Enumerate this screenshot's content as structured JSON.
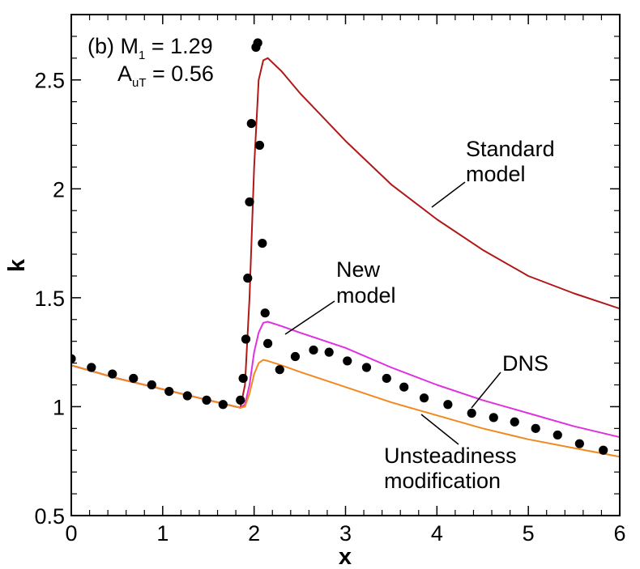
{
  "chart_data": {
    "type": "line",
    "title": "",
    "xlabel": "x",
    "ylabel": "k",
    "xlim": [
      0,
      6
    ],
    "ylim": [
      0.5,
      2.8
    ],
    "grid": false,
    "legend": "none (inline labels)",
    "x_ticks": [
      0,
      1,
      2,
      3,
      4,
      5,
      6
    ],
    "x_tick_labels": [
      "0",
      "1",
      "2",
      "3",
      "4",
      "5",
      "6"
    ],
    "y_ticks": [
      0.5,
      1,
      1.5,
      2,
      2.5
    ],
    "y_tick_labels": [
      "0.5",
      "1",
      "1.5",
      "2",
      "2.5"
    ],
    "annotation": {
      "line1_prefix": "(b) M",
      "line1_sub": "1",
      "line1_suffix": " = 1.29",
      "line2_prefix": "A",
      "line2_sub": "uT",
      "line2_suffix": " = 0.56"
    },
    "series": [
      {
        "name": "Standard model",
        "label_lines": [
          "Standard",
          "model"
        ],
        "color": "#b01818",
        "x": [
          0,
          0.5,
          1,
          1.5,
          1.75,
          1.85,
          1.9,
          1.95,
          2.0,
          2.05,
          2.1,
          2.15,
          2.3,
          2.5,
          3.0,
          3.5,
          4.0,
          4.5,
          5.0,
          5.5,
          6.0
        ],
        "y": [
          1.19,
          1.13,
          1.08,
          1.03,
          1.005,
          0.995,
          1.1,
          1.5,
          2.1,
          2.5,
          2.59,
          2.6,
          2.54,
          2.44,
          2.22,
          2.02,
          1.86,
          1.72,
          1.6,
          1.52,
          1.45
        ]
      },
      {
        "name": "New model",
        "label_lines": [
          "New",
          "model"
        ],
        "color": "#e030e0",
        "x": [
          0,
          0.5,
          1,
          1.5,
          1.75,
          1.85,
          1.9,
          1.95,
          2.0,
          2.05,
          2.1,
          2.15,
          2.3,
          2.5,
          3.0,
          3.5,
          4.0,
          4.5,
          5.0,
          5.5,
          6.0
        ],
        "y": [
          1.19,
          1.13,
          1.08,
          1.03,
          1.005,
          0.995,
          1.01,
          1.1,
          1.25,
          1.34,
          1.385,
          1.39,
          1.37,
          1.34,
          1.27,
          1.18,
          1.1,
          1.03,
          0.97,
          0.91,
          0.86
        ]
      },
      {
        "name": "Unsteadiness modification",
        "label_lines": [
          "Unsteadiness",
          "modification"
        ],
        "color": "#f08a1e",
        "x": [
          0,
          0.5,
          1,
          1.5,
          1.75,
          1.85,
          1.9,
          1.95,
          2.0,
          2.05,
          2.1,
          2.15,
          2.3,
          2.5,
          3.0,
          3.5,
          4.0,
          4.5,
          5.0,
          5.5,
          6.0
        ],
        "y": [
          1.19,
          1.13,
          1.08,
          1.03,
          1.005,
          0.995,
          1.0,
          1.06,
          1.15,
          1.2,
          1.215,
          1.21,
          1.19,
          1.16,
          1.09,
          1.02,
          0.96,
          0.9,
          0.85,
          0.81,
          0.77
        ]
      },
      {
        "name": "DNS",
        "label_lines": [
          "DNS"
        ],
        "color": "#000000",
        "marker": "circle",
        "x": [
          0.0,
          0.22,
          0.45,
          0.68,
          0.88,
          1.07,
          1.27,
          1.48,
          1.66,
          1.85,
          1.88,
          1.91,
          1.93,
          1.95,
          1.97,
          2.02,
          2.04,
          2.06,
          2.09,
          2.12,
          2.15,
          2.28,
          2.45,
          2.65,
          2.82,
          3.02,
          3.23,
          3.45,
          3.64,
          3.86,
          4.12,
          4.38,
          4.62,
          4.85,
          5.08,
          5.32,
          5.56,
          5.82
        ],
        "y": [
          1.22,
          1.18,
          1.15,
          1.13,
          1.1,
          1.07,
          1.05,
          1.03,
          1.01,
          1.03,
          1.13,
          1.31,
          1.59,
          1.94,
          2.3,
          2.65,
          2.67,
          2.2,
          1.75,
          1.43,
          1.29,
          1.17,
          1.23,
          1.26,
          1.25,
          1.21,
          1.18,
          1.13,
          1.09,
          1.04,
          1.01,
          0.97,
          0.95,
          0.93,
          0.9,
          0.87,
          0.83,
          0.8
        ]
      }
    ]
  }
}
